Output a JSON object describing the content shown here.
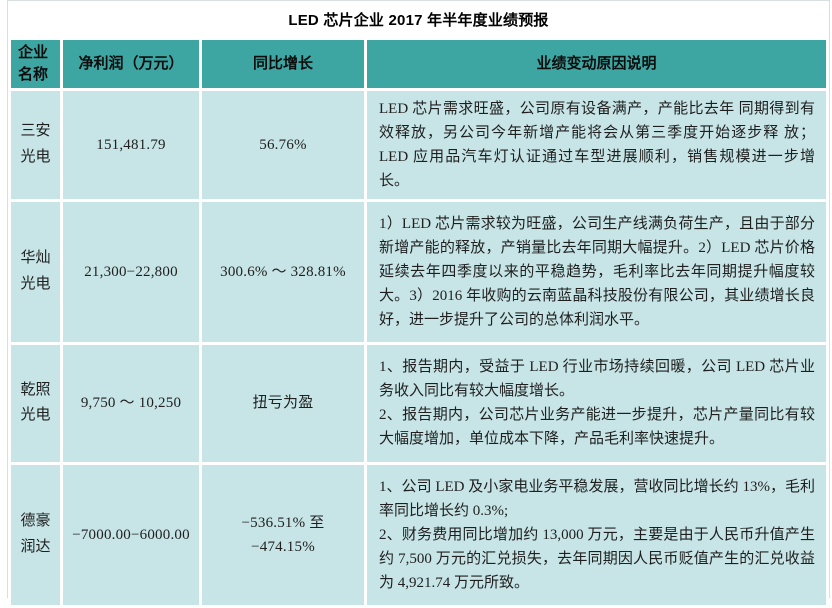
{
  "page": {
    "title": "LED 芯片企业 2017 年半年度业绩预报"
  },
  "colors": {
    "header_bg": "#3EA6A2",
    "cell_bg": "#C7E4E6"
  },
  "table": {
    "columns": [
      "企业名称",
      "净利润（万元）",
      "同比增长",
      "业绩变动原因说明"
    ],
    "rows": [
      {
        "company": "三安光电",
        "net_profit": "151,481.79",
        "yoy_growth": "56.76%",
        "reason": "LED 芯片需求旺盛，公司原有设备满产，产能比去年 同期得到有效释放，另公司今年新增产能将会从第三季度开始逐步释 放；LED 应用品汽车灯认证通过车型进展顺利，销售规模进一步增长。"
      },
      {
        "company": "华灿光电",
        "net_profit": "21,300−22,800",
        "yoy_growth": "300.6% ～ 328.81%",
        "reason": "1）LED 芯片需求较为旺盛，公司生产线满负荷生产，且由于部分新增产能的释放，产销量比去年同期大幅提升。2）LED 芯片价格延续去年四季度以来的平稳趋势，毛利率比去年同期提升幅度较大。3）2016 年收购的云南蓝晶科技股份有限公司，其业绩增长良好，进一步提升了公司的总体利润水平。"
      },
      {
        "company": "乾照光电",
        "net_profit": "9,750 ～ 10,250",
        "yoy_growth": "扭亏为盈",
        "reason": "1、报告期内，受益于 LED 行业市场持续回暖，公司 LED 芯片业务收入同比有较大幅度增长。\n2、报告期内，公司芯片业务产能进一步提升，芯片产量同比有较大幅度增加，单位成本下降，产品毛利率快速提升。"
      },
      {
        "company": "德豪润达",
        "net_profit": "−7000.00−6000.00",
        "yoy_growth": "−536.51% 至 −474.15%",
        "reason": "1、公司 LED 及小家电业务平稳发展，营收同比增长约 13%，毛利率同比增长约 0.3%;\n2、财务费用同比增加约 13,000 万元，主要是由于人民币升值产生约 7,500 万元的汇兑损失，去年同期因人民币贬值产生的汇兑收益为 4,921.74 万元所致。"
      }
    ]
  }
}
